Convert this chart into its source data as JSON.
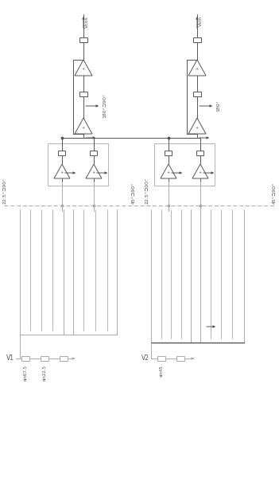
{
  "bg": "#ffffff",
  "gc": "#aaaaaa",
  "dc": "#555555",
  "fig_w": 3.51,
  "fig_h": 6.0,
  "dpi": 100,
  "Vcos": "Vcos",
  "Vsin": "Vsin",
  "V1": "V1",
  "V2": "V2",
  "sin675": "sin67.5",
  "sin225": "sin22.5",
  "sin45": "sin45",
  "lbl_180_90": "180°⊐90°",
  "lbl_180": "180°",
  "lbl_225_90_L": "22.5°⊐90°",
  "lbl_45_90": "45°⊐90°",
  "lbl_225_00": "22.5°⊐00°",
  "lbl_45_90_R": "45°⊐90°"
}
